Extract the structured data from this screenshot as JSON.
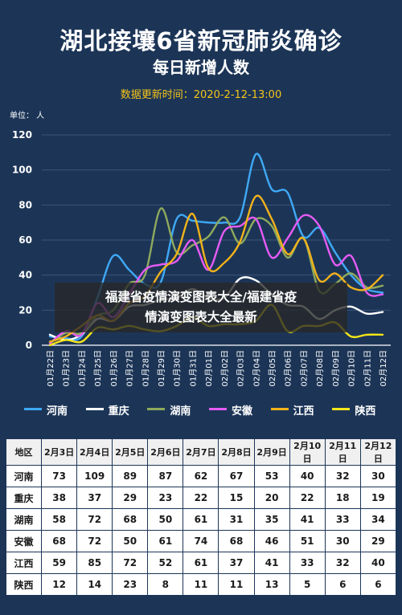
{
  "title": "湖北接壤6省新冠肺炎确诊",
  "subtitle": "每日新增人数",
  "update_label": "数据更新时间：",
  "update_time": "2020-2-12-13:00",
  "unit_label": "单位： 人",
  "overlay": {
    "line1": "福建省疫情演变图表大全/福建省疫",
    "line2": "情演变图表大全最新"
  },
  "colors": {
    "background": "#1c3557",
    "河南": "#3fa9f5",
    "重庆": "#ffffff",
    "湖南": "#8faa5c",
    "安徽": "#e65bf5",
    "江西": "#f2b21a",
    "陕西": "#f5e61a"
  },
  "chart_data": {
    "type": "line",
    "ylabel": "单位： 人",
    "ylim": [
      0,
      120
    ],
    "yticks": [
      0,
      20,
      40,
      60,
      80,
      100,
      120
    ],
    "x": [
      "01月22日",
      "01月23日",
      "01月24日",
      "01月25日",
      "01月26日",
      "01月27日",
      "01月28日",
      "01月29日",
      "01月30日",
      "01月31日",
      "02月01日",
      "02月02日",
      "02月03日",
      "02月04日",
      "02月05日",
      "02月06日",
      "02月07日",
      "02月08日",
      "02月09日",
      "02月10日",
      "02月11日",
      "02月12日"
    ],
    "legend_position": "bottom",
    "series": [
      {
        "name": "河南",
        "values": [
          5,
          4,
          5,
          27,
          51,
          43,
          35,
          36,
          72,
          71,
          70,
          70,
          73,
          109,
          89,
          87,
          62,
          67,
          53,
          40,
          32,
          30
        ]
      },
      {
        "name": "重庆",
        "values": [
          6,
          3,
          6,
          15,
          14,
          22,
          23,
          26,
          27,
          32,
          27,
          27,
          38,
          37,
          29,
          23,
          22,
          15,
          20,
          22,
          18,
          19
        ]
      },
      {
        "name": "湖南",
        "values": [
          1,
          7,
          7,
          17,
          20,
          35,
          40,
          78,
          53,
          57,
          62,
          73,
          58,
          72,
          68,
          50,
          61,
          31,
          35,
          41,
          33,
          34
        ]
      },
      {
        "name": "安徽",
        "values": [
          1,
          8,
          6,
          24,
          16,
          29,
          43,
          46,
          48,
          60,
          43,
          65,
          68,
          72,
          50,
          61,
          74,
          68,
          46,
          51,
          30,
          29
        ]
      },
      {
        "name": "江西",
        "values": [
          2,
          5,
          11,
          17,
          14,
          24,
          28,
          42,
          52,
          75,
          44,
          47,
          59,
          85,
          72,
          52,
          61,
          37,
          41,
          33,
          32,
          40
        ]
      },
      {
        "name": "陕西",
        "values": [
          0,
          3,
          2,
          10,
          9,
          11,
          9,
          8,
          11,
          16,
          11,
          12,
          12,
          14,
          23,
          8,
          11,
          11,
          13,
          5,
          6,
          6
        ]
      }
    ]
  },
  "table": {
    "header_label": "地区",
    "dates": [
      "2月3日",
      "2月4日",
      "2月5日",
      "2月6日",
      "2月7日",
      "2月8日",
      "2月9日",
      "2月10日",
      "2月11日",
      "2月12日"
    ],
    "rows": [
      {
        "region": "河南",
        "values": [
          "73",
          "109",
          "89",
          "87",
          "62",
          "67",
          "53",
          "40",
          "32",
          "30"
        ]
      },
      {
        "region": "重庆",
        "values": [
          "38",
          "37",
          "29",
          "23",
          "22",
          "15",
          "20",
          "22",
          "18",
          "19"
        ]
      },
      {
        "region": "湖南",
        "values": [
          "58",
          "72",
          "68",
          "50",
          "61",
          "31",
          "35",
          "41",
          "33",
          "34"
        ]
      },
      {
        "region": "安徽",
        "values": [
          "68",
          "72",
          "50",
          "61",
          "74",
          "68",
          "46",
          "51",
          "30",
          "29"
        ]
      },
      {
        "region": "江西",
        "values": [
          "59",
          "85",
          "72",
          "52",
          "61",
          "37",
          "41",
          "33",
          "32",
          "40"
        ]
      },
      {
        "region": "陕西",
        "values": [
          "12",
          "14",
          "23",
          "8",
          "11",
          "11",
          "13",
          "5",
          "6",
          "6"
        ]
      }
    ]
  }
}
